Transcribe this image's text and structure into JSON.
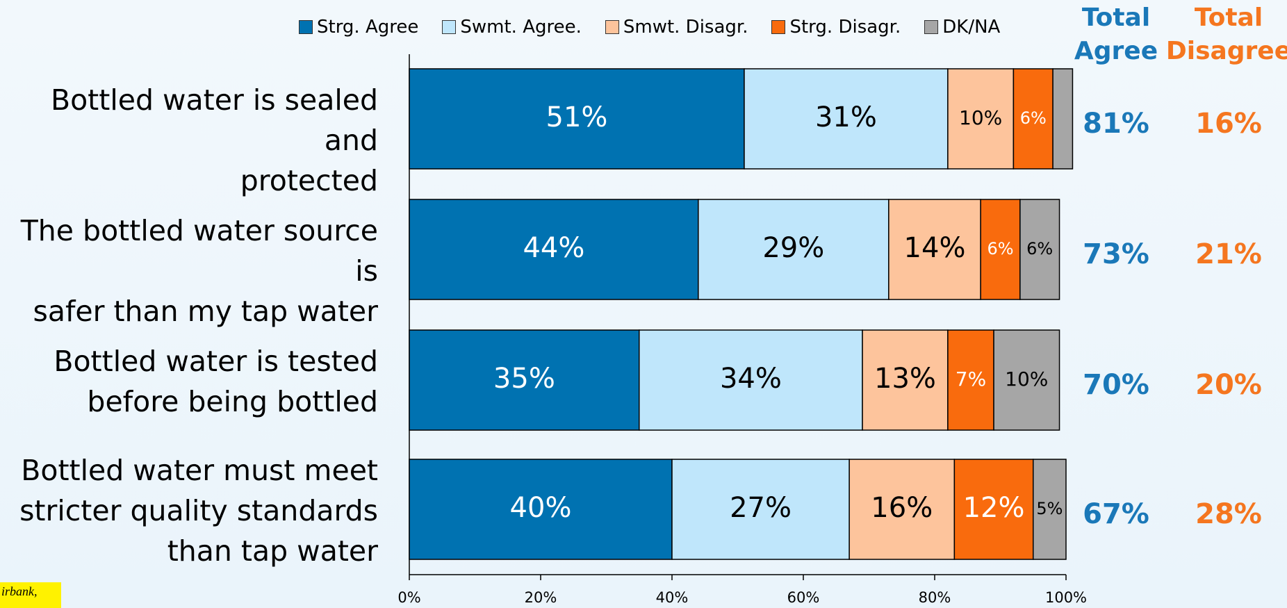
{
  "chart_data": {
    "type": "stacked_bar_horizontal",
    "categories": [
      "Bottled water is sealed and\nprotected",
      "The bottled water source is\nsafer than my tap water",
      "Bottled water is tested\nbefore being bottled",
      "Bottled water must meet\nstricter quality standards\nthan tap water"
    ],
    "series": [
      {
        "name": "Strg. Agree",
        "color": "#0072b1",
        "text_color": "#ffffff",
        "values": [
          51,
          44,
          35,
          40
        ],
        "value_labels": [
          "51%",
          "44%",
          "35%",
          "40%"
        ]
      },
      {
        "name": "Swmt. Agree.",
        "color": "#bfe6fb",
        "text_color": "#000000",
        "values": [
          31,
          29,
          34,
          27
        ],
        "value_labels": [
          "31%",
          "29%",
          "34%",
          "27%"
        ]
      },
      {
        "name": "Smwt. Disagr.",
        "color": "#fdc49c",
        "text_color": "#000000",
        "values": [
          10,
          14,
          13,
          16
        ],
        "value_labels": [
          "10%",
          "14%",
          "13%",
          "16%"
        ]
      },
      {
        "name": "Strg. Disagr.",
        "color": "#f96b0d",
        "text_color": "#ffffff",
        "values": [
          6,
          6,
          7,
          12
        ],
        "value_labels": [
          "6%",
          "6%",
          "7%",
          "12%"
        ]
      },
      {
        "name": "DK/NA",
        "color": "#a6a6a6",
        "text_color": "#000000",
        "values": [
          3,
          6,
          10,
          5
        ],
        "value_labels": [
          null,
          "6%",
          "10%",
          "5%"
        ]
      }
    ],
    "totals": [
      {
        "name": "Total\nAgree",
        "color": "#1a78b8",
        "values": [
          81,
          73,
          70,
          67
        ],
        "value_labels": [
          "81%",
          "73%",
          "70%",
          "67%"
        ]
      },
      {
        "name": "Total\nDisagree",
        "color": "#f5761f",
        "values": [
          16,
          21,
          20,
          28
        ],
        "value_labels": [
          "16%",
          "21%",
          "20%",
          "28%"
        ]
      }
    ],
    "xlim": [
      0,
      100
    ],
    "xticks": [
      {
        "value": 0,
        "label": "0%"
      },
      {
        "value": 20,
        "label": "20%"
      },
      {
        "value": 40,
        "label": "40%"
      },
      {
        "value": 60,
        "label": "60%"
      },
      {
        "value": 80,
        "label": "80%"
      },
      {
        "value": 100,
        "label": "100%"
      }
    ],
    "grid": false,
    "legend": "top",
    "footnote": "irbank,"
  }
}
